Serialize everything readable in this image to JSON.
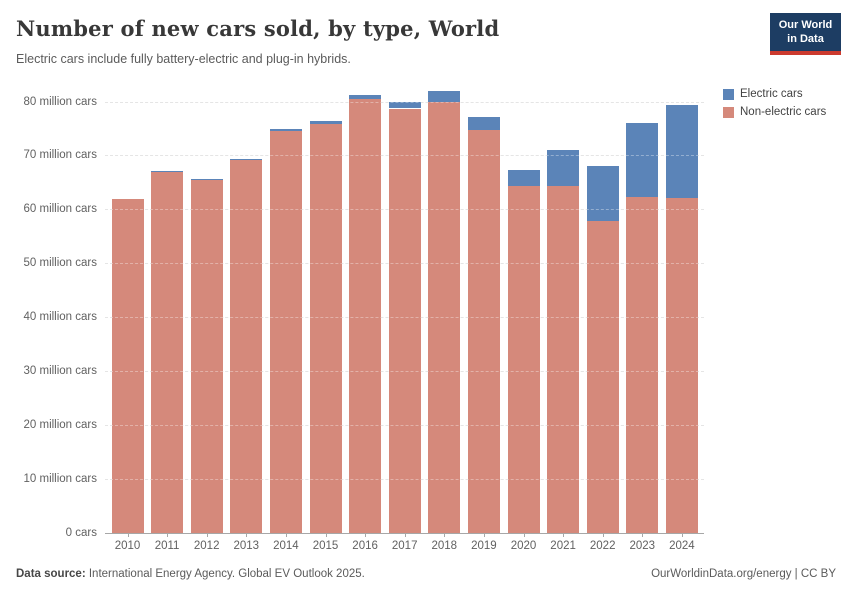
{
  "header": {
    "title": "Number of new cars sold, by type, World",
    "subtitle": "Electric cars include fully battery-electric and plug-in hybrids.",
    "logo": {
      "line1": "Our World",
      "line2": "in Data",
      "bg_color": "#1d3d63",
      "stripe_color": "#cc3a2e"
    }
  },
  "legend": [
    {
      "label": "Electric cars",
      "color": "#5b84b8"
    },
    {
      "label": "Non-electric cars",
      "color": "#d5897b"
    }
  ],
  "chart_data": {
    "type": "bar",
    "stacked": true,
    "title": "Number of new cars sold, by type, World",
    "categories": [
      "2010",
      "2011",
      "2012",
      "2013",
      "2014",
      "2015",
      "2016",
      "2017",
      "2018",
      "2019",
      "2020",
      "2021",
      "2022",
      "2023",
      "2024"
    ],
    "series": [
      {
        "name": "Electric cars",
        "color": "#5b84b8",
        "values": [
          0.01,
          0.05,
          0.12,
          0.21,
          0.32,
          0.55,
          0.76,
          1.19,
          2.08,
          2.26,
          2.98,
          6.6,
          10.2,
          13.8,
          17.3
        ]
      },
      {
        "name": "Non-electric cars",
        "color": "#d5897b",
        "values": [
          62.0,
          67.0,
          65.5,
          69.1,
          74.6,
          75.9,
          80.4,
          78.7,
          79.9,
          74.8,
          64.4,
          64.4,
          57.8,
          62.3,
          62.1
        ]
      }
    ],
    "totals": [
      62.0,
      67.1,
      65.6,
      69.3,
      74.9,
      76.5,
      81.2,
      79.9,
      82.0,
      77.1,
      67.4,
      71.0,
      68.0,
      76.1,
      79.4
    ],
    "unit": "million cars",
    "ylim": [
      0,
      80
    ],
    "ytick_step": 10,
    "ytick_labels": [
      "0 cars",
      "10 million cars",
      "20 million cars",
      "30 million cars",
      "40 million cars",
      "50 million cars",
      "60 million cars",
      "70 million cars",
      "80 million cars"
    ],
    "grid": "horizontal-dashed",
    "legend_position": "top-right"
  },
  "footer": {
    "source_label": "Data source:",
    "source_text": " International Energy Agency. Global EV Outlook 2025.",
    "credit": "OurWorldinData.org/energy | CC BY"
  }
}
